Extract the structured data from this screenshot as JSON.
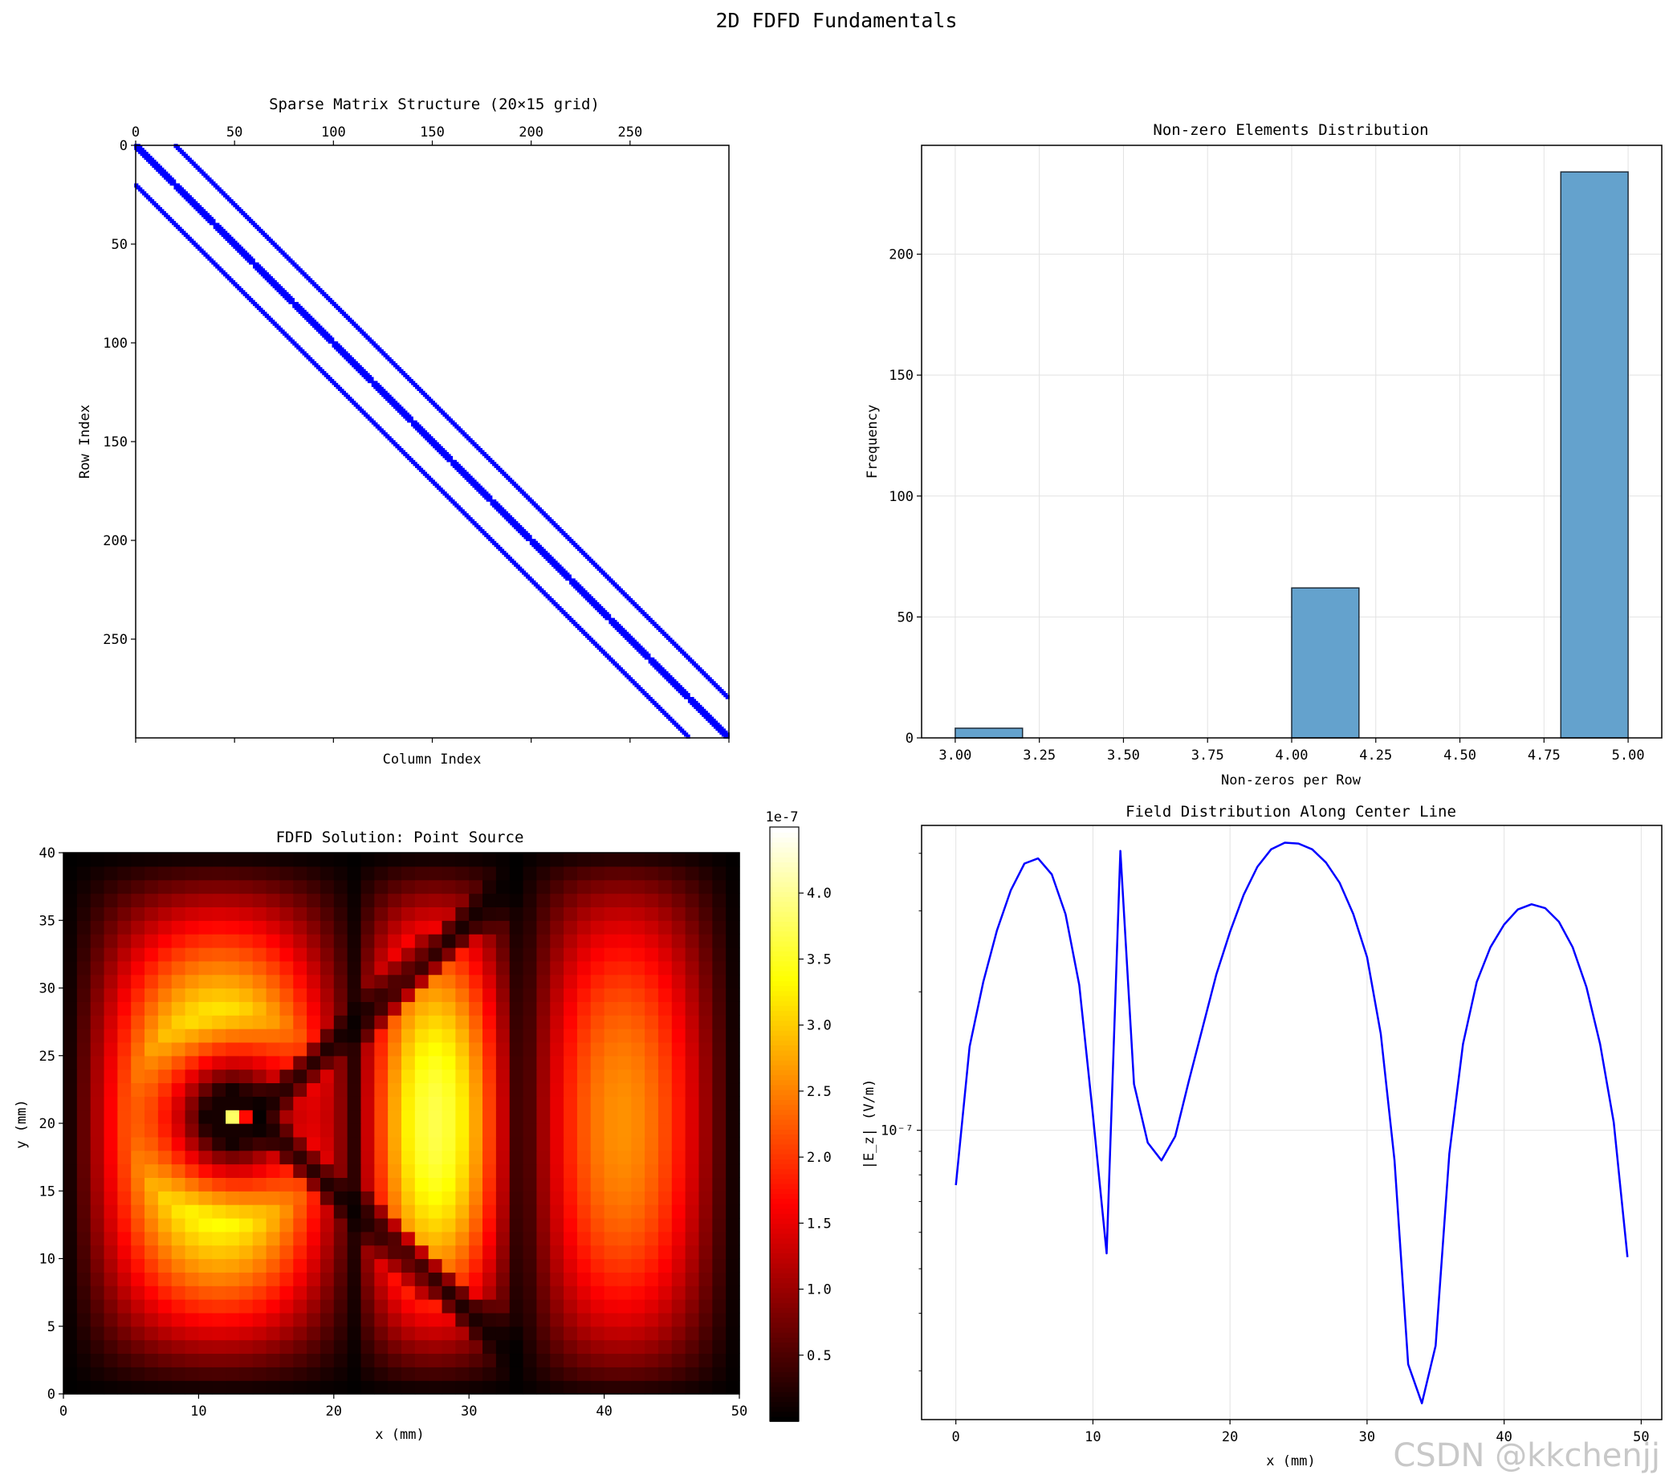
{
  "figure": {
    "suptitle": "2D FDFD Fundamentals",
    "watermark": "CSDN @kkchenjj"
  },
  "chart_data": [
    {
      "type": "heatmap",
      "kind": "sparsity-pattern",
      "title": "Sparse Matrix Structure (20×15 grid)",
      "xlabel": "Column Index",
      "ylabel": "Row Index",
      "matrix_size": 300,
      "nx": 20,
      "ny": 15,
      "diagonal_offsets": [
        -20,
        -1,
        0,
        1,
        20
      ],
      "marker_color": "#0000ff",
      "xlim": [
        0,
        300
      ],
      "ylim": [
        300,
        0
      ],
      "xticks": [
        "0",
        "50",
        "100",
        "150",
        "200",
        "250"
      ],
      "yticks": [
        "0",
        "50",
        "100",
        "150",
        "200",
        "250"
      ],
      "xaxis_position": "top"
    },
    {
      "type": "bar",
      "kind": "histogram",
      "title": "Non-zero Elements Distribution",
      "xlabel": "Non-zeros per Row",
      "ylabel": "Frequency",
      "bins": [
        {
          "x0": 3.0,
          "x1": 3.2,
          "value": 4
        },
        {
          "x0": 3.2,
          "x1": 3.4,
          "value": 0
        },
        {
          "x0": 3.4,
          "x1": 3.6,
          "value": 0
        },
        {
          "x0": 3.6,
          "x1": 3.8,
          "value": 0
        },
        {
          "x0": 3.8,
          "x1": 4.0,
          "value": 0
        },
        {
          "x0": 4.0,
          "x1": 4.2,
          "value": 62
        },
        {
          "x0": 4.2,
          "x1": 4.4,
          "value": 0
        },
        {
          "x0": 4.4,
          "x1": 4.6,
          "value": 0
        },
        {
          "x0": 4.6,
          "x1": 4.8,
          "value": 0
        },
        {
          "x0": 4.8,
          "x1": 5.0,
          "value": 234
        }
      ],
      "bar_color": "#64a2cd",
      "edge_color": "#1f2d3a",
      "xlim": [
        2.9,
        5.1
      ],
      "ylim": [
        0,
        245
      ],
      "xticks": [
        3.0,
        3.25,
        3.5,
        3.75,
        4.0,
        4.25,
        4.5,
        4.75,
        5.0
      ],
      "xtick_labels": [
        "3.00",
        "3.25",
        "3.50",
        "3.75",
        "4.00",
        "4.25",
        "4.50",
        "4.75",
        "5.00"
      ],
      "yticks": [
        0,
        50,
        100,
        150,
        200
      ],
      "ytick_labels": [
        "0",
        "50",
        "100",
        "150",
        "200"
      ],
      "grid": true
    },
    {
      "type": "heatmap",
      "title": "FDFD Solution: Point Source",
      "xlabel": "x (mm)",
      "ylabel": "y (mm)",
      "grid_nx": 50,
      "grid_ny": 40,
      "source_location": [
        12.5,
        20.5
      ],
      "colormap": "hot",
      "xlim": [
        0,
        50
      ],
      "ylim": [
        0,
        40
      ],
      "xticks": [
        0,
        10,
        20,
        30,
        40,
        50
      ],
      "xtick_labels": [
        "0",
        "10",
        "20",
        "30",
        "40",
        "50"
      ],
      "yticks": [
        0,
        5,
        10,
        15,
        20,
        25,
        30,
        35,
        40
      ],
      "ytick_labels": [
        "0",
        "5",
        "10",
        "15",
        "20",
        "25",
        "30",
        "35",
        "40"
      ],
      "colorbar": {
        "range": [
          0,
          4.5
        ],
        "ticks": [
          0.5,
          1.0,
          1.5,
          2.0,
          2.5,
          3.0,
          3.5,
          4.0
        ],
        "tick_labels": [
          "0.5",
          "1.0",
          "1.5",
          "2.0",
          "2.5",
          "3.0",
          "3.5",
          "4.0"
        ],
        "offset_label": "1e-7"
      }
    },
    {
      "type": "line",
      "title": "Field Distribution Along Center Line",
      "xlabel": "x (mm)",
      "ylabel": "|E_z| (V/m)",
      "yscale": "log",
      "line_color": "#0000ff",
      "x": [
        0,
        1,
        2,
        3,
        4,
        5,
        6,
        7,
        8,
        9,
        10,
        11,
        12,
        13,
        14,
        15,
        16,
        17,
        18,
        19,
        20,
        21,
        22,
        23,
        24,
        25,
        26,
        27,
        28,
        29,
        30,
        31,
        32,
        33,
        34,
        35,
        36,
        37,
        38,
        39,
        40,
        41,
        42,
        43,
        44,
        45,
        46,
        47,
        48,
        49
      ],
      "y": [
        7.6e-08,
        1.52e-07,
        2.1e-07,
        2.72e-07,
        3.32e-07,
        3.8e-07,
        3.9e-07,
        3.6e-07,
        2.95e-07,
        2.07e-07,
        1.08e-07,
        5.4e-08,
        4.05e-07,
        1.26e-07,
        9.4e-08,
        8.6e-08,
        9.7e-08,
        1.28e-07,
        1.67e-07,
        2.18e-07,
        2.7e-07,
        3.25e-07,
        3.74e-07,
        4.08e-07,
        4.22e-07,
        4.2e-07,
        4.08e-07,
        3.82e-07,
        3.45e-07,
        2.95e-07,
        2.38e-07,
        1.62e-07,
        8.6e-08,
        3.1e-08,
        2.55e-08,
        3.4e-08,
        8.9e-08,
        1.54e-07,
        2.1e-07,
        2.5e-07,
        2.8e-07,
        3.02e-07,
        3.1e-07,
        3.04e-07,
        2.84e-07,
        2.5e-07,
        2.05e-07,
        1.54e-07,
        1.04e-07,
        5.3e-08
      ],
      "xlim": [
        -2.5,
        51.5
      ],
      "ylim": [
        2.35e-08,
        4.6e-07
      ],
      "xticks": [
        0,
        10,
        20,
        30,
        40,
        50
      ],
      "xtick_labels": [
        "0",
        "10",
        "20",
        "30",
        "40",
        "50"
      ],
      "ytick_labels": [
        "10⁻⁷"
      ],
      "grid": true
    }
  ]
}
